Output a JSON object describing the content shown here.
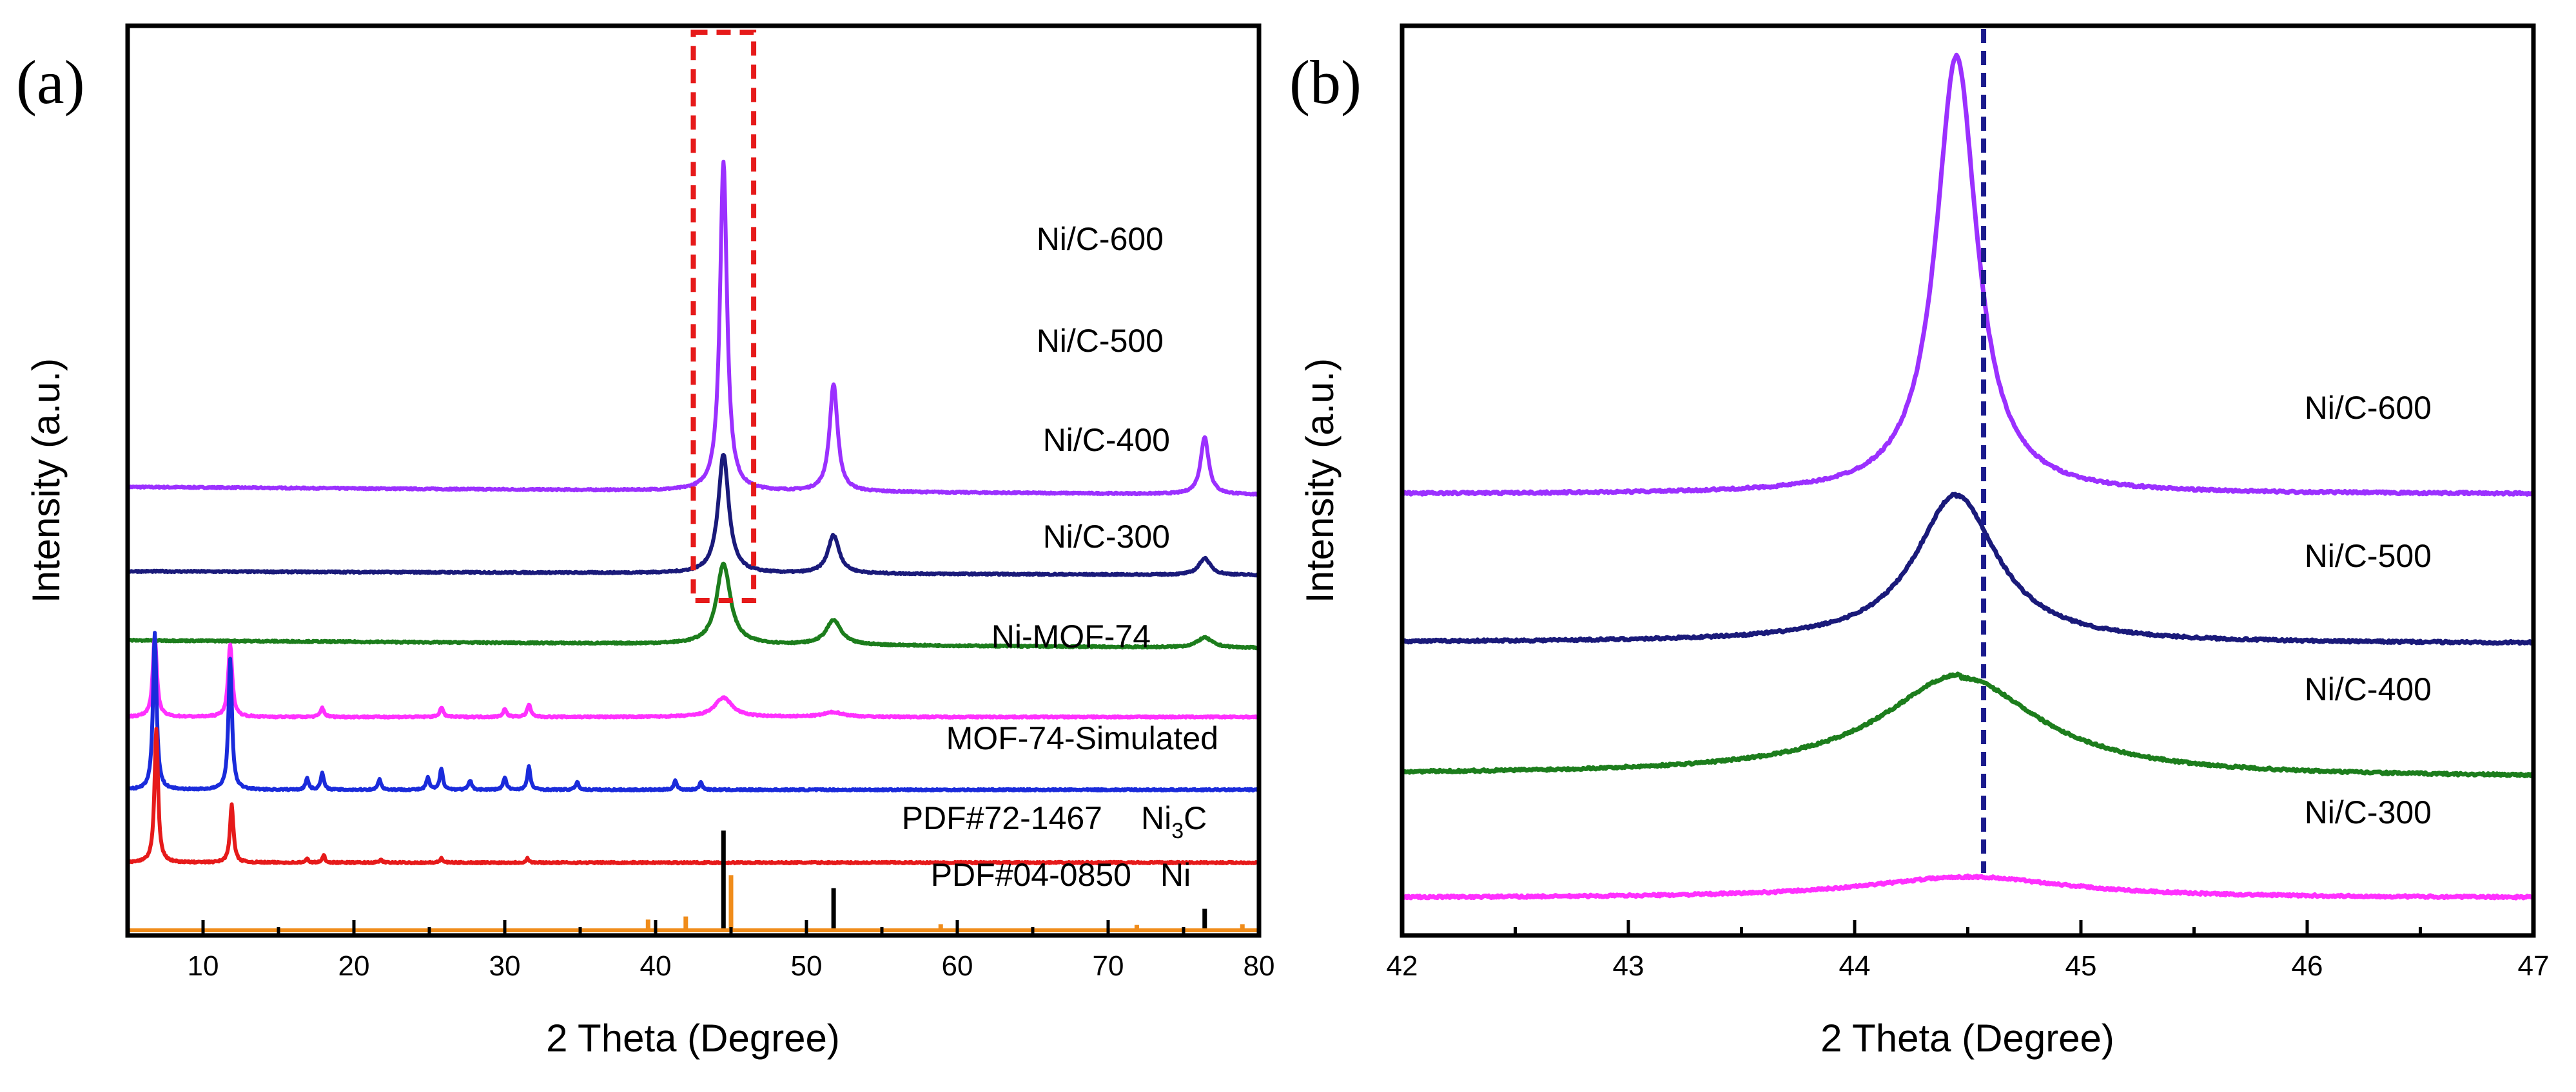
{
  "colors": {
    "ni_c_600": "#9b30ff",
    "ni_c_500": "#1a1a7a",
    "ni_c_400": "#1c7d1c",
    "ni_c_300": "#ff30ff",
    "ni_mof_74": "#1a2bdb",
    "mof_74_simulated": "#e61a1a",
    "ni_ref": "#000000",
    "ni3c_ref": "#f08c1a",
    "highlight_box": "#e61a1a",
    "dashed_line": "#1a1a8c"
  },
  "chart_data": [
    {
      "panel_label": "(a)",
      "type": "line",
      "xlabel": "2 Theta  (Degree)",
      "ylabel": "Intensity (a.u.)",
      "xlim": [
        5,
        80
      ],
      "xticks": [
        10,
        20,
        30,
        40,
        50,
        60,
        70,
        80
      ],
      "xtick_labels": [
        "10",
        "20",
        "30",
        "40",
        "50",
        "60",
        "70",
        "80"
      ],
      "highlight_box_x_range": [
        42.5,
        46.5
      ],
      "series": [
        {
          "name": "Ni/C-600",
          "color_key": "ni_c_600",
          "offset": 5.75,
          "background": [
            0.1,
            0.0
          ],
          "peaks": [
            [
              44.5,
              4.3,
              0.28
            ],
            [
              51.8,
              1.4,
              0.32
            ],
            [
              76.4,
              0.75,
              0.32
            ]
          ]
        },
        {
          "name": "Ni/C-500",
          "color_key": "ni_c_500",
          "offset": 4.7,
          "background": [
            0.05,
            0.0
          ],
          "peaks": [
            [
              44.5,
              1.55,
              0.42
            ],
            [
              51.8,
              0.5,
              0.45
            ],
            [
              76.4,
              0.22,
              0.45
            ]
          ]
        },
        {
          "name": "Ni/C-400",
          "color_key": "ni_c_400",
          "offset": 3.75,
          "background": [
            0.1,
            0.0
          ],
          "peaks": [
            [
              44.5,
              1.05,
              0.55
            ],
            [
              51.8,
              0.32,
              0.6
            ],
            [
              76.4,
              0.13,
              0.6
            ]
          ]
        },
        {
          "name": "Ni/C-300",
          "color_key": "ni_c_300",
          "offset": 2.85,
          "background": [
            0.0,
            0.0
          ],
          "peaks": [
            [
              6.8,
              1.05,
              0.16
            ],
            [
              11.8,
              0.95,
              0.16
            ],
            [
              17.9,
              0.12,
              0.14
            ],
            [
              25.8,
              0.12,
              0.14
            ],
            [
              30.0,
              0.1,
              0.14
            ],
            [
              31.6,
              0.16,
              0.14
            ],
            [
              44.5,
              0.25,
              0.7
            ],
            [
              51.8,
              0.06,
              0.8
            ]
          ]
        },
        {
          "name": "Ni-MOF-74",
          "color_key": "ni_mof_74",
          "offset": 1.9,
          "background": [
            0.0,
            0.0
          ],
          "peaks": [
            [
              6.8,
              2.05,
              0.14
            ],
            [
              11.8,
              1.7,
              0.14
            ],
            [
              16.9,
              0.15,
              0.12
            ],
            [
              17.9,
              0.22,
              0.12
            ],
            [
              21.7,
              0.14,
              0.12
            ],
            [
              24.9,
              0.16,
              0.12
            ],
            [
              25.8,
              0.28,
              0.12
            ],
            [
              27.7,
              0.12,
              0.12
            ],
            [
              30.0,
              0.16,
              0.12
            ],
            [
              31.6,
              0.3,
              0.12
            ],
            [
              34.8,
              0.1,
              0.12
            ],
            [
              41.3,
              0.12,
              0.12
            ],
            [
              43.0,
              0.1,
              0.12
            ]
          ]
        },
        {
          "name": "MOF-74-Simulated",
          "color_key": "mof_74_simulated",
          "offset": 0.95,
          "background": [
            0.0,
            0.0
          ],
          "peaks": [
            [
              6.9,
              1.75,
              0.14
            ],
            [
              11.9,
              0.75,
              0.14
            ],
            [
              16.9,
              0.05,
              0.1
            ],
            [
              18.0,
              0.1,
              0.1
            ],
            [
              21.8,
              0.04,
              0.1
            ],
            [
              25.8,
              0.06,
              0.1
            ],
            [
              31.5,
              0.06,
              0.1
            ]
          ]
        }
      ],
      "reference_patterns": [
        {
          "label": "PDF#04-0850",
          "phase": "Ni",
          "color_key": "ni_ref",
          "lines": [
            [
              44.5,
              1.3
            ],
            [
              51.8,
              0.55
            ],
            [
              76.4,
              0.28
            ]
          ]
        },
        {
          "label": "PDF#72-1467",
          "phase_main": "Ni",
          "phase_sub": "3",
          "phase_end": "C",
          "color_key": "ni3c_ref",
          "lines": [
            [
              39.5,
              0.14
            ],
            [
              42.0,
              0.18
            ],
            [
              45.0,
              0.72
            ],
            [
              58.9,
              0.08
            ],
            [
              71.9,
              0.07
            ],
            [
              78.9,
              0.08
            ]
          ]
        }
      ]
    },
    {
      "panel_label": "(b)",
      "type": "line",
      "xlabel": "2 Theta  (Degree)",
      "ylabel": "Intensity (a.u.)",
      "xlim": [
        42,
        47
      ],
      "xticks": [
        42,
        43,
        44,
        45,
        46,
        47
      ],
      "xtick_labels": [
        "42",
        "43",
        "44",
        "45",
        "46",
        "47"
      ],
      "reference_line_x": 44.57,
      "series": [
        {
          "name": "Ni/C-600",
          "color_key": "ni_c_600",
          "baseline": 6.85,
          "center": 44.45,
          "peak": 6.8,
          "width": 0.11,
          "left_bg": 0.0,
          "right_bg": 0.0
        },
        {
          "name": "Ni/C-500",
          "color_key": "ni_c_500",
          "baseline": 4.55,
          "center": 44.45,
          "peak": 2.3,
          "width": 0.22,
          "left_bg": 0.0,
          "right_bg": -0.02
        },
        {
          "name": "Ni/C-400",
          "color_key": "ni_c_400",
          "baseline": 2.45,
          "center": 44.47,
          "peak": 1.55,
          "width": 0.42,
          "left_bg": 0.05,
          "right_bg": 0.0
        },
        {
          "name": "Ni/C-300",
          "color_key": "ni_c_300",
          "baseline": 0.58,
          "center": 44.5,
          "peak": 0.33,
          "width": 0.55,
          "left_bg": 0.0,
          "right_bg": 0.0
        }
      ]
    }
  ]
}
